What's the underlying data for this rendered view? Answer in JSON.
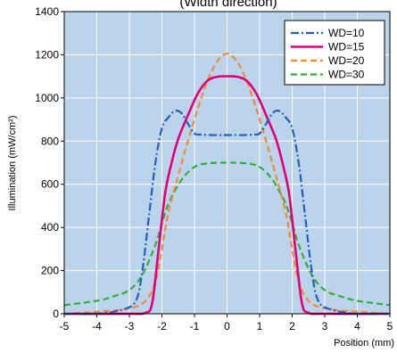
{
  "chart_data": {
    "type": "line",
    "title": "(Width direction)",
    "xlabel": "Position (mm)",
    "ylabel": "Illumination (mW/cm²)",
    "xlim": [
      -5,
      5
    ],
    "ylim": [
      0,
      1400
    ],
    "xticks": [
      "-5",
      "-4",
      "-3",
      "-2",
      "-1",
      "0",
      "1",
      "2",
      "3",
      "4",
      "5"
    ],
    "yticks": [
      "0",
      "200",
      "400",
      "600",
      "800",
      "1000",
      "1200",
      "1400"
    ],
    "grid": true,
    "legend_position": "top-right",
    "series": [
      {
        "name": "WD=10",
        "color": "#1f5fbf",
        "dash": "dashdot",
        "x": [
          -5,
          -4,
          -3.2,
          -2.8,
          -2.6,
          -2.4,
          -2.2,
          -2,
          -1.8,
          -1.6,
          -1.4,
          -1.2,
          -1,
          -0.8,
          -0.5,
          -0.2,
          0,
          0.2,
          0.5,
          0.8,
          1,
          1.2,
          1.4,
          1.6,
          1.8,
          2,
          2.2,
          2.4,
          2.6,
          2.8,
          3.2,
          4,
          5
        ],
        "y": [
          0,
          0,
          20,
          60,
          200,
          450,
          700,
          860,
          910,
          940,
          930,
          880,
          835,
          830,
          828,
          828,
          828,
          828,
          828,
          830,
          835,
          880,
          930,
          940,
          910,
          860,
          700,
          450,
          200,
          60,
          20,
          0,
          0
        ]
      },
      {
        "name": "WD=15",
        "color": "#e0007a",
        "dash": "solid",
        "x": [
          -5,
          -3,
          -2.5,
          -2.3,
          -2.1,
          -1.9,
          -1.7,
          -1.5,
          -1.2,
          -0.9,
          -0.6,
          -0.3,
          0,
          0.3,
          0.6,
          0.9,
          1.2,
          1.5,
          1.7,
          1.9,
          2.1,
          2.3,
          2.5,
          3,
          5
        ],
        "y": [
          0,
          0,
          5,
          50,
          300,
          560,
          700,
          810,
          920,
          1020,
          1080,
          1098,
          1100,
          1098,
          1080,
          1020,
          920,
          810,
          700,
          560,
          300,
          50,
          5,
          0,
          0
        ]
      },
      {
        "name": "WD=20",
        "color": "#f28a2e",
        "dash": "dashed",
        "x": [
          -5,
          -4,
          -3,
          -2.5,
          -2.2,
          -2,
          -1.8,
          -1.5,
          -1.2,
          -0.9,
          -0.6,
          -0.3,
          0,
          0.3,
          0.6,
          0.9,
          1.2,
          1.5,
          1.8,
          2,
          2.2,
          2.5,
          3,
          4,
          5
        ],
        "y": [
          0,
          10,
          25,
          60,
          150,
          300,
          470,
          640,
          800,
          950,
          1080,
          1170,
          1205,
          1170,
          1080,
          950,
          800,
          640,
          470,
          300,
          150,
          60,
          25,
          10,
          0
        ]
      },
      {
        "name": "WD=30",
        "color": "#2fae3a",
        "dash": "dashed",
        "x": [
          -5,
          -4,
          -3.5,
          -3,
          -2.6,
          -2.2,
          -2,
          -1.8,
          -1.6,
          -1.4,
          -1.2,
          -1,
          -0.8,
          -0.5,
          -0.2,
          0,
          0.2,
          0.5,
          0.8,
          1,
          1.2,
          1.4,
          1.6,
          1.8,
          2,
          2.2,
          2.6,
          3,
          3.5,
          4,
          5
        ],
        "y": [
          40,
          60,
          80,
          110,
          180,
          320,
          420,
          510,
          570,
          620,
          655,
          680,
          692,
          698,
          700,
          700,
          700,
          698,
          692,
          680,
          655,
          620,
          570,
          510,
          420,
          320,
          180,
          110,
          80,
          60,
          40
        ]
      }
    ]
  }
}
